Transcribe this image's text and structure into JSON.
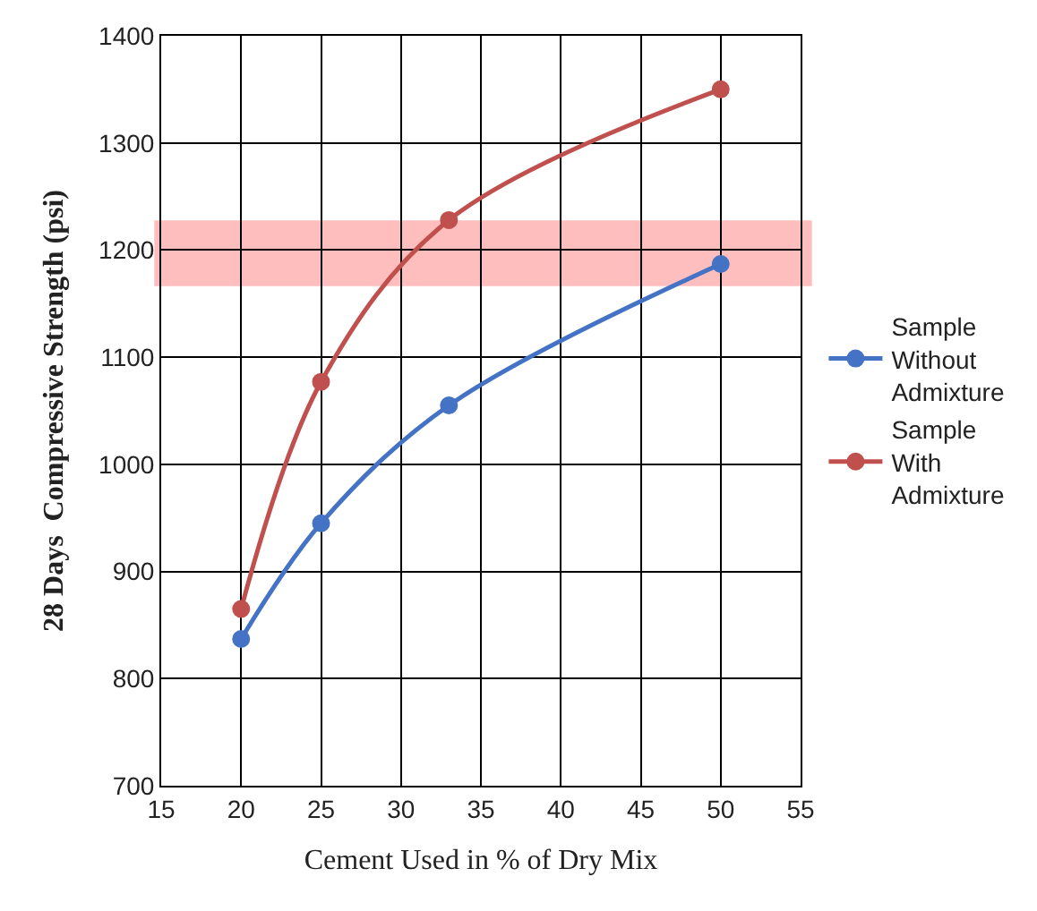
{
  "chart_data": {
    "type": "line",
    "xlabel": "Cement Used in % of Dry Mix",
    "ylabel": "28 Days  Compressive Strength (psi)",
    "x": [
      20,
      25,
      33,
      50
    ],
    "series": [
      {
        "name": "Sample Without Admixture",
        "color": "#4472c4",
        "values": [
          837,
          945,
          1055,
          1187
        ]
      },
      {
        "name": "Sample With Admixture",
        "color": "#c0504d",
        "values": [
          865,
          1077,
          1228,
          1350
        ]
      }
    ],
    "xlim": [
      15,
      55
    ],
    "xticks": [
      15,
      20,
      25,
      30,
      35,
      40,
      45,
      50,
      55
    ],
    "ylim": [
      700,
      1400
    ],
    "yticks": [
      700,
      800,
      900,
      1000,
      1100,
      1200,
      1300,
      1400
    ],
    "bands": [
      {
        "axis": "y",
        "from": 1168,
        "to": 1226,
        "color": "#ff0000"
      }
    ],
    "grid": true,
    "legend": "right",
    "marker": "circle",
    "line_style": "solid"
  }
}
